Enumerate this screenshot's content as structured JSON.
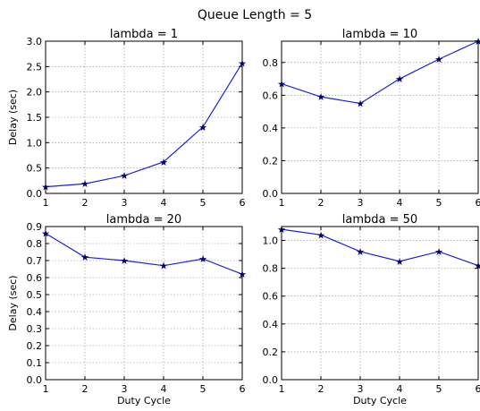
{
  "figure": {
    "suptitle": "Queue Length = 5"
  },
  "style": {
    "line_color": "#1f1fd6",
    "marker_color": "#000066",
    "grid_color": "#8a8a8a",
    "frame_color": "#000000"
  },
  "chart_data": [
    {
      "type": "line",
      "title": "lambda = 1",
      "xlabel": "",
      "ylabel": "Delay (sec)",
      "x": [
        1,
        2,
        3,
        4,
        5,
        6
      ],
      "xlim": [
        1,
        6
      ],
      "xticks": [
        1,
        2,
        3,
        4,
        5,
        6
      ],
      "ylim": [
        0,
        3.0
      ],
      "yticks": [
        0.0,
        0.5,
        1.0,
        1.5,
        2.0,
        2.5,
        3.0
      ],
      "ytick_labels": [
        "0.0",
        "0.5",
        "1.0",
        "1.5",
        "2.0",
        "2.5",
        "3.0"
      ],
      "grid": true,
      "series": [
        {
          "values": [
            0.13,
            0.19,
            0.35,
            0.62,
            1.31,
            2.57
          ]
        }
      ]
    },
    {
      "type": "line",
      "title": "lambda = 10",
      "xlabel": "",
      "ylabel": "",
      "x": [
        1,
        2,
        3,
        4,
        5,
        6
      ],
      "xlim": [
        1,
        6
      ],
      "xticks": [
        1,
        2,
        3,
        4,
        5,
        6
      ],
      "ylim": [
        0,
        0.93
      ],
      "yticks": [
        0.0,
        0.2,
        0.4,
        0.6,
        0.8
      ],
      "ytick_labels": [
        "0.0",
        "0.2",
        "0.4",
        "0.6",
        "0.8"
      ],
      "grid": true,
      "series": [
        {
          "values": [
            0.67,
            0.59,
            0.55,
            0.7,
            0.82,
            0.93
          ]
        }
      ]
    },
    {
      "type": "line",
      "title": "lambda = 20",
      "xlabel": "Duty Cycle",
      "ylabel": "Delay (sec)",
      "x": [
        1,
        2,
        3,
        4,
        5,
        6
      ],
      "xlim": [
        1,
        6
      ],
      "xticks": [
        1,
        2,
        3,
        4,
        5,
        6
      ],
      "ylim": [
        0,
        0.9
      ],
      "yticks": [
        0.0,
        0.1,
        0.2,
        0.3,
        0.4,
        0.5,
        0.6,
        0.7,
        0.8,
        0.9
      ],
      "ytick_labels": [
        "0.0",
        "0.1",
        "0.2",
        "0.3",
        "0.4",
        "0.5",
        "0.6",
        "0.7",
        "0.8",
        "0.9"
      ],
      "grid": true,
      "series": [
        {
          "values": [
            0.86,
            0.72,
            0.7,
            0.67,
            0.71,
            0.62
          ]
        }
      ]
    },
    {
      "type": "line",
      "title": "lambda = 50",
      "xlabel": "Duty Cycle",
      "ylabel": "",
      "x": [
        1,
        2,
        3,
        4,
        5,
        6
      ],
      "xlim": [
        1,
        6
      ],
      "xticks": [
        1,
        2,
        3,
        4,
        5,
        6
      ],
      "ylim": [
        0,
        1.1
      ],
      "yticks": [
        0.0,
        0.2,
        0.4,
        0.6,
        0.8,
        1.0
      ],
      "ytick_labels": [
        "0.0",
        "0.2",
        "0.4",
        "0.6",
        "0.8",
        "1.0"
      ],
      "grid": true,
      "series": [
        {
          "values": [
            1.08,
            1.04,
            0.92,
            0.85,
            0.92,
            0.82
          ]
        }
      ]
    }
  ]
}
